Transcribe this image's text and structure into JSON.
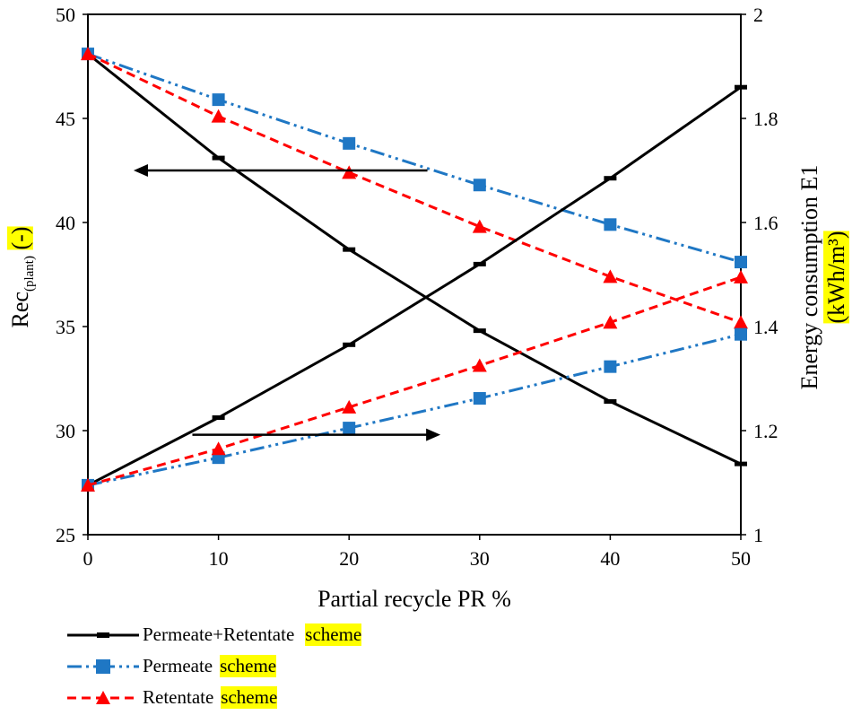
{
  "chart_data": {
    "type": "line",
    "xlabel": "Partial recycle PR %",
    "x": [
      0,
      10,
      20,
      30,
      40,
      50
    ],
    "xlim": [
      0,
      50
    ],
    "xticks": [
      "0",
      "10",
      "20",
      "30",
      "40",
      "50"
    ],
    "ylabel_left": {
      "main": "Rec",
      "sub": "(plant)",
      "unit": "(-)"
    },
    "ylim_left": [
      25,
      50
    ],
    "yticks_left": [
      "25",
      "30",
      "35",
      "40",
      "45",
      "50"
    ],
    "ylabel_right": {
      "line1": "Energy consumption E1",
      "line2": "(kWh/m³)"
    },
    "ylim_right": [
      1,
      2
    ],
    "yticks_right": [
      "1",
      "1.2",
      "1.4",
      "1.6",
      "1.8",
      "2"
    ],
    "series": [
      {
        "name": "Permeate+Retentate",
        "axis": "left",
        "color": "#000000",
        "marker": "dash",
        "style": "solid",
        "values": [
          48.1,
          43.1,
          38.7,
          34.8,
          31.4,
          28.4
        ]
      },
      {
        "name": "Permeate",
        "axis": "left",
        "color": "#1f77c4",
        "marker": "square",
        "style": "dashdotdot",
        "values": [
          48.1,
          45.9,
          43.8,
          41.8,
          39.9,
          38.1
        ]
      },
      {
        "name": "Retentate",
        "axis": "left",
        "color": "#ff0000",
        "marker": "triangle",
        "style": "dashed",
        "values": [
          48.1,
          45.1,
          42.4,
          39.8,
          37.4,
          35.2
        ]
      },
      {
        "name": "Permeate+Retentate",
        "axis": "right",
        "color": "#000000",
        "marker": "dash",
        "style": "solid",
        "values": [
          1.095,
          1.225,
          1.365,
          1.52,
          1.685,
          1.86
        ]
      },
      {
        "name": "Permeate",
        "axis": "right",
        "color": "#1f77c4",
        "marker": "square",
        "style": "dashdotdot",
        "values": [
          1.095,
          1.148,
          1.205,
          1.262,
          1.323,
          1.385
        ]
      },
      {
        "name": "Retentate",
        "axis": "right",
        "color": "#ff0000",
        "marker": "triangle",
        "style": "dashed",
        "values": [
          1.095,
          1.165,
          1.245,
          1.325,
          1.408,
          1.495
        ]
      }
    ],
    "arrows": [
      {
        "direction": "left",
        "axis": "left",
        "from_x": 26,
        "to_x": 3.5,
        "y": 42.5
      },
      {
        "direction": "right",
        "axis": "left",
        "from_x": 8,
        "to_x": 27,
        "y": 29.8
      }
    ],
    "grid": false,
    "legend_position": "bottom-left"
  },
  "legend": [
    {
      "name": "Permeate+Retentate",
      "suffix": "scheme",
      "marker": "dash",
      "color": "#000000"
    },
    {
      "name": "Permeate",
      "suffix": "scheme",
      "marker": "square",
      "color": "#1f77c4"
    },
    {
      "name": "Retentate",
      "suffix": "scheme",
      "marker": "triangle",
      "color": "#ff0000"
    }
  ]
}
